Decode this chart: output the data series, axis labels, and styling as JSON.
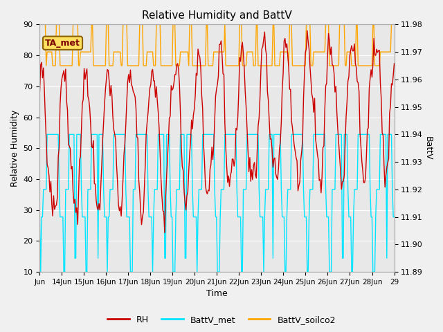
{
  "title": "Relative Humidity and BattV",
  "xlabel": "Time",
  "ylabel_left": "Relative Humidity",
  "ylabel_right": "BattV",
  "annotation_text": "TA_met",
  "left_ylim": [
    10,
    90
  ],
  "right_ylim": [
    11.89,
    11.98
  ],
  "right_yticks": [
    11.89,
    11.9,
    11.91,
    11.92,
    11.93,
    11.94,
    11.95,
    11.96,
    11.97,
    11.98
  ],
  "left_yticks": [
    10,
    20,
    30,
    40,
    50,
    60,
    70,
    80,
    90
  ],
  "background_color": "#f0f0f0",
  "plot_bg_color": "#e8e8e8",
  "rh_color": "#cc0000",
  "battv_met_color": "#00e5ff",
  "battv_soilco2_color": "#ffa500",
  "xtick_labels": [
    "Jun",
    "14Jun",
    "15Jun",
    "16Jun",
    "17Jun",
    "18Jun",
    "19Jun",
    "20Jun",
    "21Jun",
    "22Jun",
    "23Jun",
    "24Jun",
    "25Jun",
    "26Jun",
    "27Jun",
    "28Jun",
    "29"
  ],
  "figsize": [
    6.4,
    4.8
  ],
  "dpi": 100
}
